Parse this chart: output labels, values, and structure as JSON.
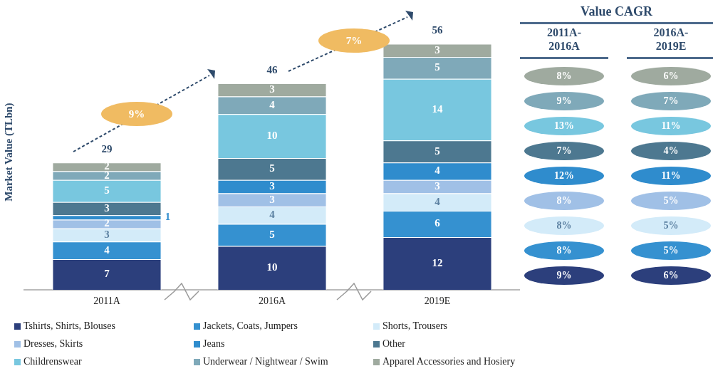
{
  "chart_data": [
    {
      "type": "bar",
      "stacked": true,
      "ylabel": "Market Value (TLbn)",
      "categories": [
        "2011A",
        "2016A",
        "2019E"
      ],
      "series": [
        {
          "name": "Tshirts, Shirts, Blouses",
          "color": "#2c3f7c",
          "values": [
            7,
            10,
            12
          ]
        },
        {
          "name": "Jackets, Coats, Jumpers",
          "color": "#3591d0",
          "values": [
            4,
            5,
            6
          ]
        },
        {
          "name": "Shorts, Trousers",
          "color": "#d3ebf9",
          "values": [
            3,
            4,
            4
          ]
        },
        {
          "name": "Dresses, Skirts",
          "color": "#a0c0e6",
          "values": [
            2,
            3,
            3
          ]
        },
        {
          "name": "Jeans",
          "color": "#2f8ccd",
          "values": [
            1,
            3,
            4
          ]
        },
        {
          "name": "Other",
          "color": "#4d7890",
          "values": [
            3,
            5,
            5
          ]
        },
        {
          "name": "Childrenswear",
          "color": "#78c7df",
          "values": [
            5,
            10,
            14
          ]
        },
        {
          "name": "Underwear / Nightwear / Swim",
          "color": "#7fa9b9",
          "values": [
            2,
            4,
            5
          ]
        },
        {
          "name": "Apparel Accessories and Hosiery",
          "color": "#9faa9f",
          "values": [
            2,
            3,
            3
          ]
        }
      ],
      "data_labels": true,
      "totals": [
        "29",
        "46",
        "56"
      ],
      "legend": "bottom",
      "grid": false,
      "tick_labels": "x",
      "annotations": [
        "9%",
        "7%"
      ]
    },
    {
      "type": "other",
      "title": "Value CAGR",
      "categories": [
        "2011A-2016A",
        "2016A-2019E"
      ],
      "series": [
        {
          "color": "#9faa9f",
          "values": [
            8,
            6
          ],
          "value_labels": [
            "8%",
            "6%"
          ]
        },
        {
          "color": "#7fa9b9",
          "values": [
            9,
            7
          ],
          "value_labels": [
            "9%",
            "7%"
          ]
        },
        {
          "color": "#78c7df",
          "values": [
            13,
            11
          ],
          "value_labels": [
            "13%",
            "11%"
          ]
        },
        {
          "color": "#4d7890",
          "values": [
            7,
            4
          ],
          "value_labels": [
            "7%",
            "4%"
          ]
        },
        {
          "color": "#2f8ccd",
          "values": [
            12,
            11
          ],
          "value_labels": [
            "12%",
            "11%"
          ]
        },
        {
          "color": "#a0c0e6",
          "values": [
            8,
            5
          ],
          "value_labels": [
            "8%",
            "5%"
          ]
        },
        {
          "color": "#d3ebf9",
          "values": [
            8,
            5
          ],
          "value_labels": [
            "8%",
            "5%"
          ]
        },
        {
          "color": "#3591d0",
          "values": [
            8,
            5
          ],
          "value_labels": [
            "8%",
            "5%"
          ]
        },
        {
          "color": "#2c3f7c",
          "values": [
            9,
            6
          ],
          "value_labels": [
            "9%",
            "6%"
          ]
        }
      ]
    }
  ]
}
